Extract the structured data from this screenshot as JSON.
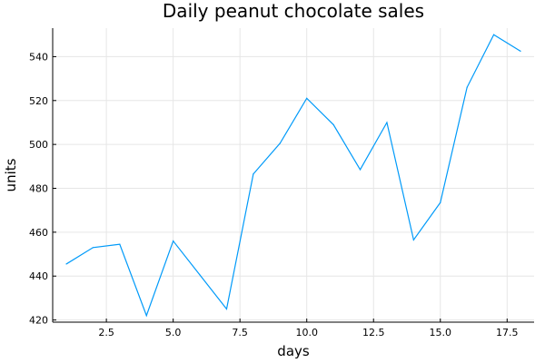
{
  "chart_data": {
    "type": "line",
    "title": "Daily peanut chocolate sales",
    "xlabel": "days",
    "ylabel": "units",
    "x": [
      1,
      2,
      3,
      4,
      5,
      6,
      7,
      8,
      9,
      10,
      11,
      12,
      13,
      14,
      15,
      16,
      17,
      18
    ],
    "series": [
      {
        "values": [
          445.5,
          453,
          454.5,
          422,
          456,
          440.5,
          425,
          486.5,
          500.5,
          521,
          509,
          488.5,
          510,
          456.5,
          473.5,
          526,
          550,
          542.5
        ],
        "color": "#009af9"
      }
    ],
    "xlim": [
      0.49,
      18.51
    ],
    "ylim": [
      419,
      553
    ],
    "xticks": [
      2.5,
      5.0,
      7.5,
      10.0,
      12.5,
      15.0,
      17.5
    ],
    "xtick_labels": [
      "2.5",
      "5.0",
      "7.5",
      "10.0",
      "12.5",
      "15.0",
      "17.5"
    ],
    "yticks": [
      420,
      440,
      460,
      480,
      500,
      520,
      540
    ],
    "ytick_labels": [
      "420",
      "440",
      "460",
      "480",
      "500",
      "520",
      "540"
    ],
    "grid": true,
    "legend": "none"
  }
}
